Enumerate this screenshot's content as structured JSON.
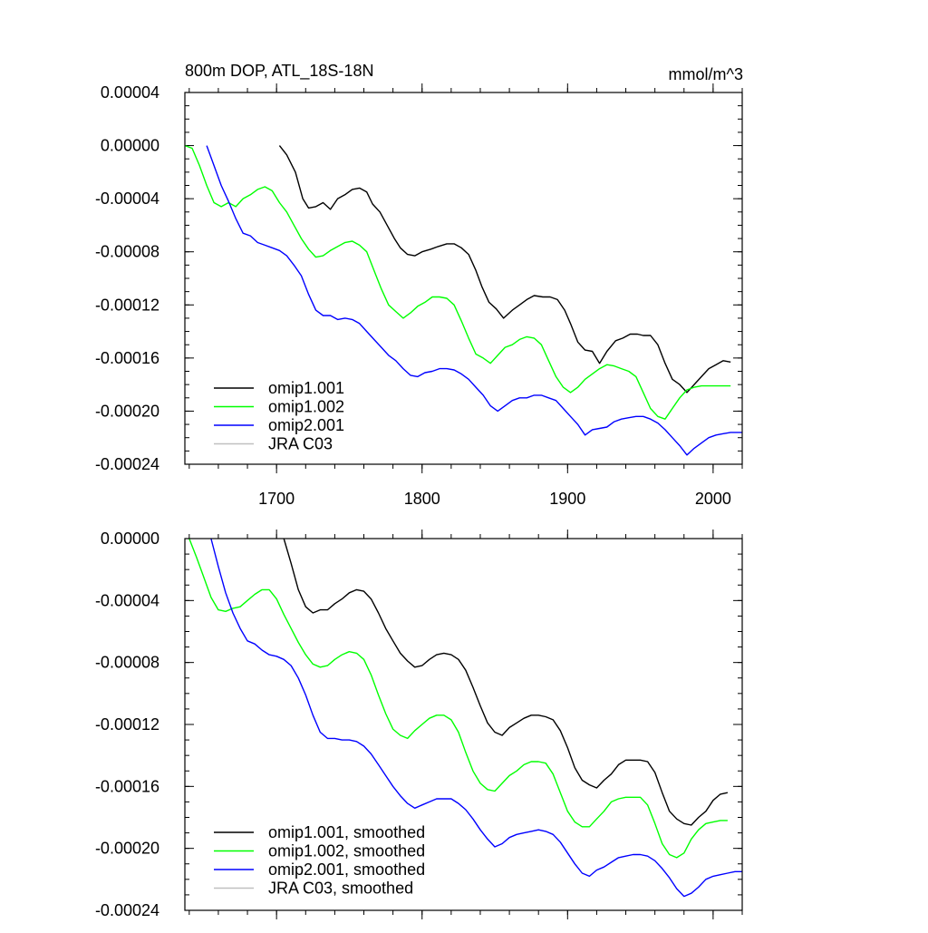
{
  "chart_data": [
    {
      "type": "line",
      "title": "800m DOP, ATL_18S-18N",
      "units_label": "mmol/m^3",
      "xlabel": "",
      "ylabel": "",
      "xlim": [
        1637,
        2020
      ],
      "ylim": [
        -0.00024,
        4e-05
      ],
      "xticks": [
        1700,
        1800,
        1900,
        2000
      ],
      "xtick_labels": [
        "1700",
        "1800",
        "1900",
        "2000"
      ],
      "yticks": [
        4e-05,
        0.0,
        -4e-05,
        -8e-05,
        -0.00012,
        -0.00016,
        -0.0002,
        -0.00024
      ],
      "ytick_labels": [
        "0.00004",
        "0.00000",
        "-0.00004",
        "-0.00008",
        "-0.00012",
        "-0.00016",
        "-0.00020",
        "-0.00024"
      ],
      "grid": false,
      "legend_position": "bottom-left",
      "series": [
        {
          "name": "omip1.001",
          "color": "#000000",
          "x": [
            1702,
            1707,
            1713,
            1718,
            1722,
            1727,
            1732,
            1737,
            1742,
            1747,
            1752,
            1757,
            1762,
            1766,
            1771,
            1776,
            1781,
            1785,
            1790,
            1795,
            1800,
            1806,
            1811,
            1817,
            1822,
            1827,
            1832,
            1837,
            1841,
            1846,
            1851,
            1856,
            1862,
            1867,
            1872,
            1877,
            1883,
            1888,
            1893,
            1898,
            1902,
            1907,
            1912,
            1917,
            1922,
            1927,
            1933,
            1938,
            1943,
            1948,
            1952,
            1957,
            1962,
            1967,
            1972,
            1977,
            1982,
            1987,
            1992,
            1997,
            2002,
            2007,
            2012
          ],
          "y": [
            0.0,
            -7e-06,
            -2e-05,
            -4e-05,
            -4.7e-05,
            -4.6e-05,
            -4.3e-05,
            -4.8e-05,
            -4e-05,
            -3.7e-05,
            -3.3e-05,
            -3.2e-05,
            -3.5e-05,
            -4.4e-05,
            -5e-05,
            -6e-05,
            -7e-05,
            -7.7e-05,
            -8.2e-05,
            -8.3e-05,
            -8e-05,
            -7.8e-05,
            -7.6e-05,
            -7.4e-05,
            -7.4e-05,
            -7.7e-05,
            -8.2e-05,
            -9.4e-05,
            -0.000106,
            -0.000118,
            -0.000123,
            -0.00013,
            -0.000124,
            -0.00012,
            -0.000116,
            -0.000113,
            -0.000114,
            -0.000114,
            -0.000116,
            -0.000124,
            -0.000134,
            -0.000148,
            -0.000154,
            -0.000155,
            -0.000164,
            -0.000155,
            -0.000147,
            -0.000145,
            -0.000142,
            -0.000142,
            -0.000143,
            -0.000143,
            -0.00015,
            -0.000164,
            -0.000176,
            -0.00018,
            -0.000186,
            -0.00018,
            -0.000174,
            -0.000168,
            -0.000165,
            -0.000162,
            -0.000163
          ]
        },
        {
          "name": "omip1.002",
          "color": "#00ff00",
          "x": [
            1637,
            1642,
            1647,
            1652,
            1657,
            1662,
            1667,
            1672,
            1677,
            1682,
            1687,
            1692,
            1697,
            1702,
            1707,
            1712,
            1717,
            1722,
            1727,
            1732,
            1737,
            1742,
            1747,
            1752,
            1757,
            1762,
            1767,
            1772,
            1777,
            1782,
            1787,
            1792,
            1797,
            1802,
            1807,
            1812,
            1817,
            1822,
            1827,
            1832,
            1837,
            1842,
            1847,
            1852,
            1857,
            1862,
            1867,
            1872,
            1877,
            1882,
            1887,
            1892,
            1897,
            1902,
            1907,
            1912,
            1917,
            1922,
            1927,
            1932,
            1937,
            1942,
            1947,
            1952,
            1957,
            1962,
            1967,
            1972,
            1977,
            1982,
            1987,
            1992,
            1997,
            2002,
            2007,
            2012
          ],
          "y": [
            0.0,
            -2e-06,
            -1.5e-05,
            -3e-05,
            -4.3e-05,
            -4.6e-05,
            -4.3e-05,
            -4.6e-05,
            -4e-05,
            -3.7e-05,
            -3.3e-05,
            -3.1e-05,
            -3.4e-05,
            -4.3e-05,
            -5e-05,
            -6e-05,
            -7e-05,
            -7.8e-05,
            -8.4e-05,
            -8.3e-05,
            -7.9e-05,
            -7.6e-05,
            -7.3e-05,
            -7.2e-05,
            -7.5e-05,
            -8e-05,
            -9.4e-05,
            -0.000108,
            -0.00012,
            -0.000125,
            -0.00013,
            -0.000126,
            -0.000121,
            -0.000118,
            -0.000114,
            -0.000114,
            -0.000115,
            -0.00012,
            -0.000132,
            -0.000145,
            -0.000157,
            -0.00016,
            -0.000164,
            -0.000158,
            -0.000152,
            -0.00015,
            -0.000146,
            -0.000144,
            -0.000145,
            -0.00015,
            -0.000162,
            -0.000174,
            -0.000182,
            -0.000186,
            -0.000182,
            -0.000176,
            -0.000172,
            -0.000168,
            -0.000165,
            -0.000166,
            -0.000168,
            -0.00017,
            -0.000174,
            -0.000186,
            -0.000198,
            -0.000204,
            -0.000206,
            -0.000198,
            -0.00019,
            -0.000184,
            -0.000182,
            -0.000181,
            -0.000181,
            -0.000181,
            -0.000181,
            -0.000181
          ]
        },
        {
          "name": "omip2.001",
          "color": "#0000ff",
          "x": [
            1652,
            1657,
            1662,
            1667,
            1672,
            1677,
            1682,
            1687,
            1692,
            1697,
            1702,
            1707,
            1712,
            1717,
            1722,
            1727,
            1732,
            1737,
            1742,
            1747,
            1752,
            1757,
            1762,
            1767,
            1772,
            1777,
            1782,
            1787,
            1792,
            1797,
            1802,
            1807,
            1812,
            1817,
            1822,
            1827,
            1832,
            1837,
            1842,
            1847,
            1852,
            1857,
            1862,
            1867,
            1872,
            1877,
            1882,
            1887,
            1892,
            1897,
            1902,
            1907,
            1912,
            1917,
            1922,
            1927,
            1932,
            1937,
            1942,
            1947,
            1952,
            1957,
            1962,
            1967,
            1972,
            1977,
            1982,
            1987,
            1992,
            1997,
            2002,
            2007,
            2012,
            2017,
            2020
          ],
          "y": [
            0.0,
            -1.5e-05,
            -3e-05,
            -4.2e-05,
            -5.5e-05,
            -6.6e-05,
            -6.8e-05,
            -7.3e-05,
            -7.5e-05,
            -7.7e-05,
            -7.9e-05,
            -8.3e-05,
            -9e-05,
            -9.8e-05,
            -0.000112,
            -0.000124,
            -0.000128,
            -0.000128,
            -0.000131,
            -0.00013,
            -0.000131,
            -0.000134,
            -0.00014,
            -0.000146,
            -0.000152,
            -0.000158,
            -0.000162,
            -0.000168,
            -0.000173,
            -0.000174,
            -0.000171,
            -0.00017,
            -0.000168,
            -0.000168,
            -0.000169,
            -0.000172,
            -0.000176,
            -0.000182,
            -0.000188,
            -0.000196,
            -0.0002,
            -0.000196,
            -0.000192,
            -0.00019,
            -0.00019,
            -0.000188,
            -0.000188,
            -0.00019,
            -0.000192,
            -0.000198,
            -0.000204,
            -0.00021,
            -0.000218,
            -0.000214,
            -0.000213,
            -0.000212,
            -0.000208,
            -0.000206,
            -0.000205,
            -0.000204,
            -0.000204,
            -0.000206,
            -0.000209,
            -0.000214,
            -0.00022,
            -0.000226,
            -0.000233,
            -0.000228,
            -0.000224,
            -0.00022,
            -0.000218,
            -0.000217,
            -0.000216,
            -0.000216,
            -0.000216
          ]
        },
        {
          "name": "JRA C03",
          "color": "#c0c0c0",
          "x": [],
          "y": []
        }
      ]
    },
    {
      "type": "line",
      "title": "",
      "xlabel": "",
      "ylabel": "",
      "xlim": [
        1637,
        2020
      ],
      "ylim": [
        -0.00024,
        0.0
      ],
      "xticks": [
        1700,
        1800,
        1900,
        2000
      ],
      "xtick_labels": [],
      "yticks": [
        0.0,
        -4e-05,
        -8e-05,
        -0.00012,
        -0.00016,
        -0.0002,
        -0.00024
      ],
      "ytick_labels": [
        "0.00000",
        "-0.00004",
        "-0.00008",
        "-0.00012",
        "-0.00016",
        "-0.00020",
        "-0.00024"
      ],
      "grid": false,
      "legend_position": "bottom-left",
      "series": [
        {
          "name": "omip1.001, smoothed",
          "color": "#000000",
          "x": [
            1705,
            1710,
            1715,
            1720,
            1725,
            1730,
            1735,
            1740,
            1745,
            1750,
            1755,
            1760,
            1765,
            1770,
            1775,
            1780,
            1785,
            1790,
            1795,
            1800,
            1805,
            1810,
            1815,
            1820,
            1825,
            1830,
            1835,
            1840,
            1845,
            1850,
            1855,
            1860,
            1865,
            1870,
            1875,
            1880,
            1885,
            1890,
            1895,
            1900,
            1905,
            1910,
            1915,
            1920,
            1925,
            1930,
            1935,
            1940,
            1945,
            1950,
            1955,
            1960,
            1965,
            1970,
            1975,
            1980,
            1985,
            1990,
            1995,
            2000,
            2005,
            2010
          ],
          "y": [
            0.0,
            -1.6e-05,
            -3.3e-05,
            -4.4e-05,
            -4.8e-05,
            -4.6e-05,
            -4.6e-05,
            -4.2e-05,
            -3.9e-05,
            -3.5e-05,
            -3.3e-05,
            -3.4e-05,
            -3.9e-05,
            -4.8e-05,
            -5.8e-05,
            -6.6e-05,
            -7.4e-05,
            -7.9e-05,
            -8.3e-05,
            -8.2e-05,
            -7.8e-05,
            -7.5e-05,
            -7.4e-05,
            -7.5e-05,
            -7.8e-05,
            -8.5e-05,
            -9.6e-05,
            -0.000108,
            -0.000119,
            -0.000125,
            -0.000127,
            -0.000122,
            -0.000119,
            -0.000116,
            -0.000114,
            -0.000114,
            -0.000115,
            -0.000117,
            -0.000124,
            -0.000135,
            -0.000148,
            -0.000156,
            -0.000159,
            -0.000161,
            -0.000156,
            -0.000152,
            -0.000146,
            -0.000143,
            -0.000143,
            -0.000143,
            -0.000144,
            -0.000151,
            -0.000164,
            -0.000176,
            -0.000181,
            -0.000184,
            -0.000185,
            -0.00018,
            -0.000176,
            -0.000169,
            -0.000165,
            -0.000164
          ]
        },
        {
          "name": "omip1.002, smoothed",
          "color": "#00ff00",
          "x": [
            1640,
            1645,
            1650,
            1655,
            1660,
            1665,
            1670,
            1675,
            1680,
            1685,
            1690,
            1695,
            1700,
            1705,
            1710,
            1715,
            1720,
            1725,
            1730,
            1735,
            1740,
            1745,
            1750,
            1755,
            1760,
            1765,
            1770,
            1775,
            1780,
            1785,
            1790,
            1795,
            1800,
            1805,
            1810,
            1815,
            1820,
            1825,
            1830,
            1835,
            1840,
            1845,
            1850,
            1855,
            1860,
            1865,
            1870,
            1875,
            1880,
            1885,
            1890,
            1895,
            1900,
            1905,
            1910,
            1915,
            1920,
            1925,
            1930,
            1935,
            1940,
            1945,
            1950,
            1955,
            1960,
            1965,
            1970,
            1975,
            1980,
            1985,
            1990,
            1995,
            2000,
            2005,
            2010
          ],
          "y": [
            0.0,
            -1.2e-05,
            -2.5e-05,
            -3.8e-05,
            -4.6e-05,
            -4.7e-05,
            -4.5e-05,
            -4.4e-05,
            -4e-05,
            -3.6e-05,
            -3.3e-05,
            -3.3e-05,
            -3.9e-05,
            -4.9e-05,
            -5.8e-05,
            -6.7e-05,
            -7.5e-05,
            -8.1e-05,
            -8.3e-05,
            -8.2e-05,
            -7.8e-05,
            -7.5e-05,
            -7.3e-05,
            -7.4e-05,
            -7.8e-05,
            -8.8e-05,
            -0.000101,
            -0.000113,
            -0.000123,
            -0.000127,
            -0.000129,
            -0.000124,
            -0.00012,
            -0.000116,
            -0.000114,
            -0.000114,
            -0.000117,
            -0.000125,
            -0.000138,
            -0.00015,
            -0.000158,
            -0.000162,
            -0.000163,
            -0.000158,
            -0.000153,
            -0.00015,
            -0.000146,
            -0.000144,
            -0.000144,
            -0.000145,
            -0.000152,
            -0.000164,
            -0.000176,
            -0.000183,
            -0.000186,
            -0.000186,
            -0.000181,
            -0.000176,
            -0.00017,
            -0.000168,
            -0.000167,
            -0.000167,
            -0.000167,
            -0.000172,
            -0.000184,
            -0.000197,
            -0.000204,
            -0.000206,
            -0.000203,
            -0.000194,
            -0.000188,
            -0.000184,
            -0.000183,
            -0.000182,
            -0.000182
          ]
        },
        {
          "name": "omip2.001, smoothed",
          "color": "#0000ff",
          "x": [
            1655,
            1660,
            1665,
            1670,
            1675,
            1680,
            1685,
            1690,
            1695,
            1700,
            1705,
            1710,
            1715,
            1720,
            1725,
            1730,
            1735,
            1740,
            1745,
            1750,
            1755,
            1760,
            1765,
            1770,
            1775,
            1780,
            1785,
            1790,
            1795,
            1800,
            1805,
            1810,
            1815,
            1820,
            1825,
            1830,
            1835,
            1840,
            1845,
            1850,
            1855,
            1860,
            1865,
            1870,
            1875,
            1880,
            1885,
            1890,
            1895,
            1900,
            1905,
            1910,
            1915,
            1920,
            1925,
            1930,
            1935,
            1940,
            1945,
            1950,
            1955,
            1960,
            1965,
            1970,
            1975,
            1980,
            1985,
            1990,
            1995,
            2000,
            2005,
            2010,
            2015,
            2020
          ],
          "y": [
            0.0,
            -1.8e-05,
            -3.5e-05,
            -4.8e-05,
            -5.8e-05,
            -6.6e-05,
            -6.8e-05,
            -7.2e-05,
            -7.5e-05,
            -7.6e-05,
            -7.8e-05,
            -8.2e-05,
            -9e-05,
            -0.000101,
            -0.000114,
            -0.000125,
            -0.000129,
            -0.000129,
            -0.00013,
            -0.00013,
            -0.000131,
            -0.000134,
            -0.000139,
            -0.000146,
            -0.000153,
            -0.00016,
            -0.000166,
            -0.000171,
            -0.000174,
            -0.000172,
            -0.00017,
            -0.000168,
            -0.000168,
            -0.000168,
            -0.000171,
            -0.000175,
            -0.000181,
            -0.000188,
            -0.000194,
            -0.000199,
            -0.000197,
            -0.000193,
            -0.000191,
            -0.00019,
            -0.000189,
            -0.000188,
            -0.000189,
            -0.000191,
            -0.000196,
            -0.000203,
            -0.00021,
            -0.000216,
            -0.000218,
            -0.000214,
            -0.000212,
            -0.000209,
            -0.000206,
            -0.000205,
            -0.000204,
            -0.000204,
            -0.000205,
            -0.000208,
            -0.000213,
            -0.000219,
            -0.000226,
            -0.000231,
            -0.000229,
            -0.000225,
            -0.00022,
            -0.000218,
            -0.000217,
            -0.000216,
            -0.000215,
            -0.000215
          ]
        },
        {
          "name": "JRA C03, smoothed",
          "color": "#c0c0c0",
          "x": [],
          "y": []
        }
      ]
    }
  ]
}
